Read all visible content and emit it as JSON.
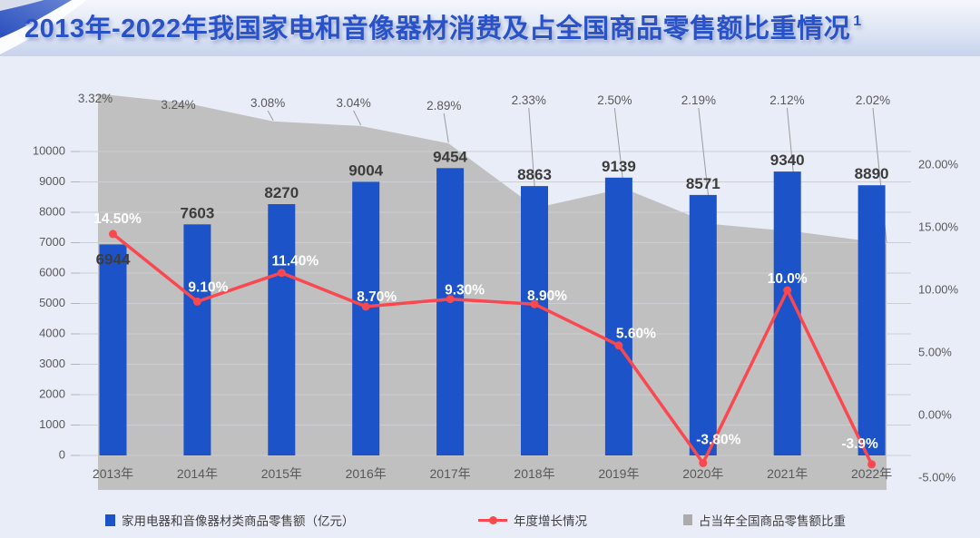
{
  "banner": {
    "title": "2013年-2022年我国家电和音像器材消费及占全国商品零售额比重情况",
    "superscript": "1"
  },
  "colors": {
    "bar": "#1D53C9",
    "line": "#F9484F",
    "area": "#C1C0C0",
    "title": "#2A52C8",
    "axis_text": "#595959",
    "bar_label": "#3C3C3C",
    "line_label": "#FFFFFF",
    "grid": "#CDCED3",
    "leader": "#9B9B9B",
    "legend_area_marker": "#ABABAB",
    "page_bg": "#E8EDF7"
  },
  "chart_data": {
    "type": "combo",
    "categories": [
      "2013年",
      "2014年",
      "2015年",
      "2016年",
      "2017年",
      "2018年",
      "2019年",
      "2020年",
      "2021年",
      "2022年"
    ],
    "series": [
      {
        "name": "家用电器和音像器材类商品零售额（亿元）",
        "type": "bar",
        "axis": "left",
        "color": "#1D53C9",
        "values": [
          6944,
          7603,
          8270,
          9004,
          9454,
          8863,
          9139,
          8571,
          9340,
          8890
        ],
        "labels": [
          "6944",
          "7603",
          "8270",
          "9004",
          "9454",
          "8863",
          "9139",
          "8571",
          "9340",
          "8890"
        ]
      },
      {
        "name": "年度增长情况",
        "type": "line",
        "axis": "right",
        "color": "#F9484F",
        "values": [
          14.5,
          9.1,
          11.4,
          8.7,
          9.3,
          8.9,
          5.6,
          -3.8,
          10.0,
          -3.9
        ],
        "labels": [
          "14.50%",
          "9.10%",
          "11.40%",
          "8.70%",
          "9.30%",
          "8.90%",
          "5.60%",
          "-3.80%",
          "10.0%",
          "-3.9%"
        ]
      },
      {
        "name": "占当年全国商品零售额比重",
        "type": "area",
        "axis": "hidden",
        "color": "#C1C0C0",
        "values": [
          3.32,
          3.24,
          3.08,
          3.04,
          2.89,
          2.33,
          2.5,
          2.19,
          2.12,
          2.02
        ],
        "labels": [
          "3.32%",
          "3.24%",
          "3.08%",
          "3.04%",
          "2.89%",
          "2.33%",
          "2.50%",
          "2.19%",
          "2.12%",
          "2.02%"
        ]
      }
    ],
    "left_axis": {
      "ticks": [
        "0",
        "1000",
        "2000",
        "3000",
        "4000",
        "5000",
        "6000",
        "7000",
        "8000",
        "9000",
        "10000"
      ],
      "range": [
        0,
        10000
      ]
    },
    "right_axis": {
      "ticks": [
        "20.00%",
        "15.00%",
        "10.00%",
        "5.00%",
        "0.00%",
        "-5.00%"
      ],
      "tick_values": [
        20,
        15,
        10,
        5,
        0,
        -5
      ],
      "range": [
        -5,
        20
      ]
    },
    "area_axis": {
      "range": [
        0,
        3.5
      ]
    },
    "grid": true,
    "legend_position": "bottom"
  },
  "legend": {
    "items": [
      {
        "label": "家用电器和音像器材类商品零售额（亿元）",
        "marker": "bar-square",
        "color": "#1D53C9"
      },
      {
        "label": "年度增长情况",
        "marker": "line-marker",
        "color": "#F9484F"
      },
      {
        "label": "占当年全国商品零售额比重",
        "marker": "area-square",
        "color": "#ABABAB"
      }
    ]
  }
}
